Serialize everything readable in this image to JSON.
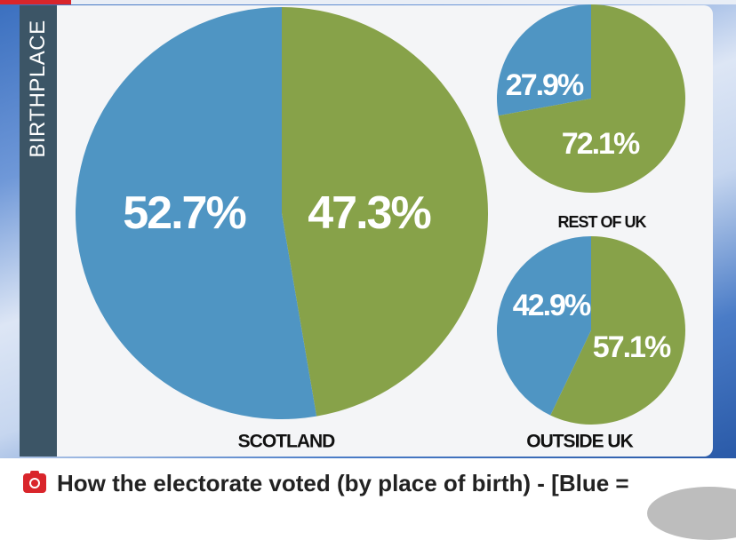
{
  "side_title": "BIRTHPLACE",
  "caption": {
    "icon": "camera-icon",
    "text": "How the electorate voted (by place of birth) - [Blue ="
  },
  "colors": {
    "blue": "#4f95c3",
    "green": "#87a249",
    "side_band": "#3c5566",
    "caption_icon": "#d9252b"
  },
  "chart_data": [
    {
      "type": "pie",
      "title": "SCOTLAND",
      "slices": [
        {
          "label": "52.7%",
          "value": 52.7,
          "color": "#4f95c3"
        },
        {
          "label": "47.3%",
          "value": 47.3,
          "color": "#87a249"
        }
      ]
    },
    {
      "type": "pie",
      "title": "REST OF UK",
      "slices": [
        {
          "label": "27.9%",
          "value": 27.9,
          "color": "#4f95c3"
        },
        {
          "label": "72.1%",
          "value": 72.1,
          "color": "#87a249"
        }
      ]
    },
    {
      "type": "pie",
      "title": "OUTSIDE UK",
      "slices": [
        {
          "label": "42.9%",
          "value": 42.9,
          "color": "#4f95c3"
        },
        {
          "label": "57.1%",
          "value": 57.1,
          "color": "#87a249"
        }
      ]
    }
  ]
}
